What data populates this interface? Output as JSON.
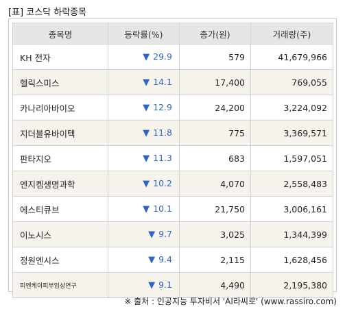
{
  "title": "[표] 코스닥 하락종목",
  "columns": [
    "종목명",
    "등락률(%)",
    "종가(원)",
    "거래량(주)"
  ],
  "down_symbol": "▼",
  "rows": [
    {
      "name": "KH 전자",
      "rate": "29.9",
      "price": "579",
      "volume": "41,679,966"
    },
    {
      "name": "헬릭스미스",
      "rate": "14.1",
      "price": "17,400",
      "volume": "769,055"
    },
    {
      "name": "카나리아바이오",
      "rate": "12.9",
      "price": "24,200",
      "volume": "3,224,092"
    },
    {
      "name": "지더블유바이텍",
      "rate": "11.8",
      "price": "775",
      "volume": "3,369,571"
    },
    {
      "name": "판타지오",
      "rate": "11.3",
      "price": "683",
      "volume": "1,597,051"
    },
    {
      "name": "엔지켐생명과학",
      "rate": "10.2",
      "price": "4,070",
      "volume": "2,558,483"
    },
    {
      "name": "에스티큐브",
      "rate": "10.1",
      "price": "21,750",
      "volume": "3,006,161"
    },
    {
      "name": "이노시스",
      "rate": "9.7",
      "price": "3,025",
      "volume": "1,344,399"
    },
    {
      "name": "정원엔시스",
      "rate": "9.4",
      "price": "2,115",
      "volume": "1,628,456"
    },
    {
      "name": "피엔케이피부임상연구",
      "rate": "9.1",
      "price": "4,490",
      "volume": "2,195,380"
    }
  ],
  "source": "※ 출처 : 인공지능 투자비서 'AI라씨로' (www.rassiro.com)",
  "colors": {
    "down": "#2e64c8",
    "header_bg": "#e6e6e6",
    "stripe": "#f5f3ec"
  }
}
